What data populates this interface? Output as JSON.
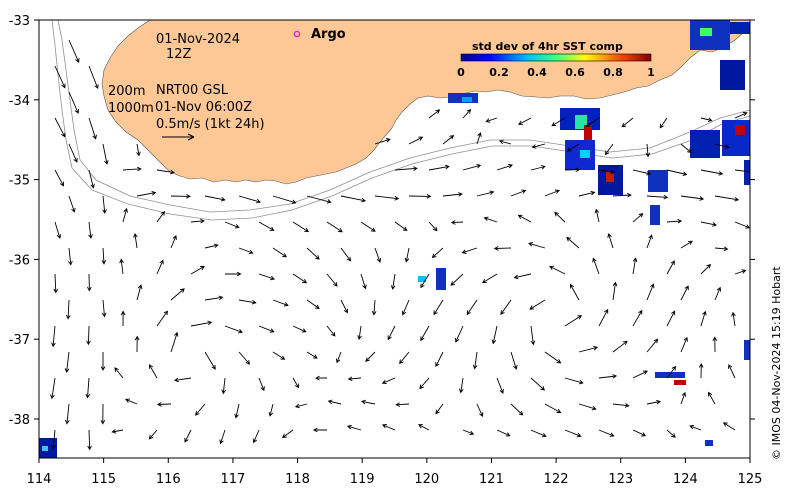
{
  "map": {
    "date": "01-Nov-2024",
    "time": "12Z",
    "depth_contours": "200m",
    "depth_contours_2": "1000m",
    "product": "NRT00 GSL",
    "altimetry_time": "01-Nov 06:00Z",
    "scale_label": "0.5m/s (1kt 24h)",
    "argo_label": "Argo",
    "colorbar": {
      "title": "std dev of 4hr SST comp",
      "ticks": [
        "0",
        "0.2",
        "0.4",
        "0.6",
        "0.8",
        "1"
      ]
    },
    "lon_ticks": [
      "114",
      "115",
      "116",
      "117",
      "118",
      "119",
      "120",
      "121",
      "122",
      "123",
      "124",
      "125"
    ],
    "lat_ticks": [
      "-33",
      "-34",
      "-35",
      "-36",
      "-37",
      "-38"
    ],
    "credit": "© IMOS 04-Nov-2024 15:19 Hobart",
    "colors": {
      "land": "#fdc896",
      "argo": "#e020e0",
      "contour": "#909090"
    }
  }
}
